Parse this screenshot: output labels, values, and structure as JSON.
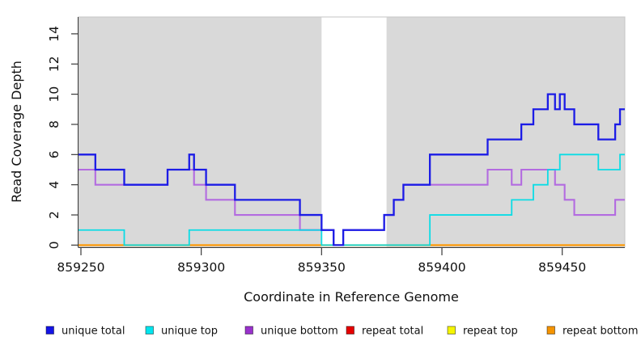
{
  "chart_data": {
    "type": "line",
    "subtype": "step",
    "title": "",
    "xlabel": "Coordinate in Reference Genome",
    "ylabel": "Read Coverage Depth",
    "xlim": [
      859249,
      859476
    ],
    "ylim": [
      0,
      15
    ],
    "x_ticks": [
      859250,
      859300,
      859350,
      859400,
      859450
    ],
    "y_ticks": [
      0,
      2,
      4,
      6,
      8,
      10,
      12,
      14
    ],
    "grid": "off",
    "page_background": "#ffffff",
    "plot_background": "#d9d9d9",
    "plot_border_color": "#c5c5c5",
    "axis_color": "#3a3a3a",
    "tick_label_color": "#111111",
    "gap_region": {
      "x_start": 859350,
      "x_end": 859377,
      "color": "#ffffff"
    },
    "series": [
      {
        "name": "unique total",
        "color": "#1c1ce6",
        "line_width": 2.3,
        "opacity": 1,
        "x_end": 859476,
        "steps": [
          [
            859249,
            6
          ],
          [
            859256,
            5
          ],
          [
            859268,
            4
          ],
          [
            859286,
            5
          ],
          [
            859295,
            6
          ],
          [
            859297,
            5
          ],
          [
            859302,
            4
          ],
          [
            859314,
            3
          ],
          [
            859341,
            2
          ],
          [
            859350,
            1
          ],
          [
            859355,
            0
          ],
          [
            859359,
            1
          ],
          [
            859376,
            2
          ],
          [
            859380,
            3
          ],
          [
            859384,
            4
          ],
          [
            859395,
            6
          ],
          [
            859419,
            7
          ],
          [
            859433,
            8
          ],
          [
            859438,
            9
          ],
          [
            859444,
            10
          ],
          [
            859447,
            9
          ],
          [
            859449,
            10
          ],
          [
            859451,
            9
          ],
          [
            859455,
            8
          ],
          [
            859465,
            7
          ],
          [
            859472,
            8
          ],
          [
            859474,
            9
          ]
        ]
      },
      {
        "name": "unique top",
        "color": "#00dce6",
        "line_width": 1.8,
        "opacity": 0.95,
        "x_end": 859476,
        "steps": [
          [
            859249,
            1
          ],
          [
            859268,
            0
          ],
          [
            859295,
            1
          ],
          [
            859350,
            0
          ],
          [
            859395,
            2
          ],
          [
            859429,
            3
          ],
          [
            859438,
            4
          ],
          [
            859444,
            5
          ],
          [
            859449,
            6
          ],
          [
            859465,
            5
          ],
          [
            859474,
            6
          ]
        ]
      },
      {
        "name": "unique bottom",
        "color": "#b36be0",
        "line_width": 2.1,
        "opacity": 1,
        "x_end": 859476,
        "steps": [
          [
            859249,
            5
          ],
          [
            859256,
            4
          ],
          [
            859286,
            5
          ],
          [
            859297,
            4
          ],
          [
            859302,
            3
          ],
          [
            859314,
            2
          ],
          [
            859341,
            1
          ],
          [
            859355,
            0
          ],
          [
            859359,
            1
          ],
          [
            859376,
            2
          ],
          [
            859380,
            3
          ],
          [
            859384,
            4
          ],
          [
            859419,
            5
          ],
          [
            859429,
            4
          ],
          [
            859433,
            5
          ],
          [
            859447,
            4
          ],
          [
            859451,
            3
          ],
          [
            859455,
            2
          ],
          [
            859472,
            3
          ]
        ]
      },
      {
        "name": "repeat total",
        "color": "#e60000",
        "line_width": 1.6,
        "opacity": 1,
        "x_end": 859476,
        "steps": [
          [
            859249,
            0
          ]
        ]
      },
      {
        "name": "repeat top",
        "color": "#f0f000",
        "line_width": 1.6,
        "opacity": 1,
        "x_end": 859476,
        "steps": [
          [
            859249,
            0
          ]
        ]
      },
      {
        "name": "repeat bottom",
        "color": "#ff9800",
        "line_width": 2.1,
        "opacity": 1,
        "x_end": 859476,
        "steps": [
          [
            859249,
            0
          ]
        ]
      }
    ],
    "draw_order": [
      "repeat total",
      "repeat top",
      "unique bottom",
      "repeat bottom",
      "unique top",
      "unique total"
    ],
    "legend": {
      "position": "bottom",
      "items": [
        {
          "label": "unique total",
          "fill": "#1414e6"
        },
        {
          "label": "unique top",
          "fill": "#00e5ee"
        },
        {
          "label": "unique bottom",
          "fill": "#9932cc"
        },
        {
          "label": "repeat total",
          "fill": "#e60000"
        },
        {
          "label": "repeat top",
          "fill": "#f5f500"
        },
        {
          "label": "repeat bottom",
          "fill": "#f59400"
        }
      ]
    }
  }
}
